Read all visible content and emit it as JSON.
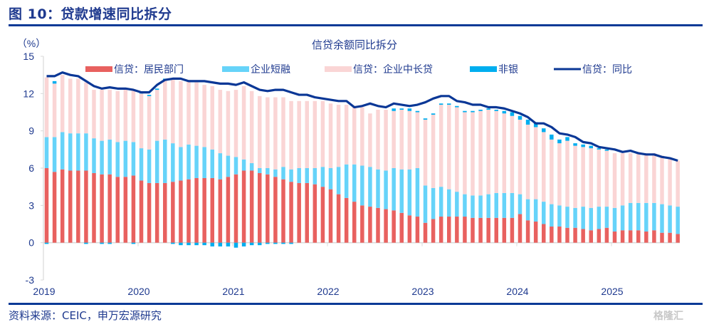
{
  "figure": {
    "title": "图 10：贷款增速同比拆分",
    "source": "资料来源：CEIC，申万宏源研究",
    "watermark": "格隆汇"
  },
  "chart_data": {
    "type": "bar",
    "stacked": true,
    "title": "信贷余额同比拆分",
    "ylabel": "（%）",
    "xlabel": "",
    "ylim": [
      -3,
      15
    ],
    "yticks": [
      15,
      12,
      9,
      6,
      3,
      0,
      -3
    ],
    "xticks": [
      "2019",
      "2020",
      "2021",
      "2022",
      "2023",
      "2024",
      "2025"
    ],
    "x_start": "2019-01",
    "x_frequency": "monthly",
    "legend_position": "top",
    "colors": {
      "household": "#e8615f",
      "corp_short": "#66d3f9",
      "corp_long": "#fad5d5",
      "nonbank": "#00aeef",
      "total": "#0a3796"
    },
    "series": [
      {
        "name": "信贷：居民部门",
        "key": "household",
        "type": "bar",
        "values": [
          6.0,
          5.7,
          5.9,
          5.8,
          5.8,
          5.8,
          5.6,
          5.5,
          5.5,
          5.3,
          5.3,
          5.4,
          5.0,
          4.8,
          4.8,
          4.8,
          4.9,
          5.0,
          5.1,
          5.2,
          5.2,
          5.2,
          5.1,
          5.3,
          5.5,
          5.8,
          5.8,
          5.6,
          5.5,
          5.3,
          5.1,
          4.9,
          4.8,
          4.8,
          4.7,
          4.5,
          4.3,
          3.9,
          3.6,
          3.3,
          3.0,
          2.9,
          2.8,
          2.7,
          2.6,
          2.4,
          2.2,
          2.1,
          1.6,
          1.9,
          2.1,
          2.1,
          2.1,
          2.1,
          2.0,
          2.0,
          2.0,
          2.0,
          2.0,
          2.0,
          2.3,
          1.8,
          1.7,
          1.5,
          1.3,
          1.3,
          1.2,
          1.2,
          1.1,
          1.0,
          1.1,
          1.2,
          0.9,
          1.0,
          1.0,
          1.0,
          0.9,
          1.0,
          0.8,
          0.8,
          0.7
        ]
      },
      {
        "name": "企业短融",
        "key": "corp_short",
        "type": "bar",
        "values": [
          2.5,
          2.8,
          3.0,
          3.0,
          3.0,
          3.0,
          2.8,
          2.7,
          2.8,
          2.8,
          2.9,
          2.7,
          2.6,
          2.7,
          3.4,
          3.5,
          3.1,
          2.7,
          2.8,
          2.6,
          2.5,
          2.3,
          2.1,
          1.7,
          1.4,
          0.9,
          0.6,
          0.4,
          0.5,
          0.6,
          1.0,
          1.0,
          1.2,
          1.2,
          1.3,
          1.6,
          1.7,
          2.2,
          2.7,
          3.0,
          3.2,
          3.2,
          3.1,
          3.1,
          3.4,
          3.5,
          3.7,
          3.9,
          3.0,
          2.5,
          2.4,
          2.2,
          2.0,
          1.8,
          1.8,
          1.8,
          1.9,
          2.0,
          2.0,
          2.0,
          1.6,
          1.7,
          1.8,
          1.8,
          1.8,
          1.7,
          1.7,
          1.6,
          1.8,
          1.8,
          1.8,
          1.7,
          1.9,
          2.0,
          2.2,
          2.2,
          2.3,
          2.2,
          2.3,
          2.2,
          2.2
        ]
      },
      {
        "name": "信贷：企业中长贷",
        "key": "corp_long",
        "type": "bar",
        "values": [
          4.8,
          4.3,
          4.6,
          4.4,
          4.4,
          4.1,
          3.9,
          4.1,
          4.0,
          4.1,
          4.1,
          4.2,
          4.4,
          4.3,
          4.1,
          4.8,
          5.1,
          5.3,
          5.2,
          5.1,
          5.0,
          5.1,
          5.1,
          5.2,
          5.4,
          5.9,
          5.8,
          5.8,
          5.7,
          5.8,
          5.6,
          5.5,
          5.4,
          5.4,
          5.4,
          5.3,
          5.2,
          5.0,
          4.8,
          4.7,
          4.7,
          4.3,
          4.8,
          4.9,
          4.6,
          4.8,
          4.7,
          4.5,
          5.3,
          5.9,
          6.6,
          6.8,
          6.8,
          6.6,
          6.7,
          6.8,
          6.8,
          6.6,
          6.4,
          6.2,
          6.0,
          6.0,
          5.8,
          5.6,
          5.2,
          5.0,
          5.3,
          5.0,
          4.8,
          4.8,
          4.6,
          4.5,
          4.4,
          4.2,
          4.0,
          4.1,
          4.0,
          4.0,
          3.9,
          3.8,
          3.7
        ]
      },
      {
        "name": "非银",
        "key": "nonbank",
        "type": "bar",
        "values": [
          -0.1,
          0.2,
          0.0,
          0.0,
          0.0,
          -0.1,
          0.0,
          -0.1,
          -0.1,
          0.0,
          0.0,
          -0.1,
          0.1,
          0.1,
          0.1,
          0.1,
          -0.1,
          -0.2,
          -0.2,
          -0.2,
          -0.2,
          -0.3,
          -0.3,
          -0.3,
          -0.4,
          -0.3,
          -0.2,
          -0.2,
          -0.1,
          -0.1,
          -0.1,
          -0.1,
          0.0,
          0.0,
          0.0,
          0.0,
          0.0,
          0.0,
          0.0,
          0.0,
          0.0,
          0.0,
          0.0,
          0.0,
          0.2,
          0.1,
          0.2,
          0.1,
          0.1,
          0.1,
          0.1,
          0.1,
          0.1,
          0.1,
          0.1,
          0.1,
          0.1,
          0.1,
          0.2,
          0.3,
          0.3,
          0.4,
          0.4,
          0.3,
          0.4,
          0.3,
          0.3,
          0.2,
          0.2,
          0.2,
          0.1,
          0.1,
          0.0,
          0.0,
          0.0,
          0.0,
          0.0,
          0.0,
          0.0,
          0.0,
          0.0
        ]
      },
      {
        "name": "信贷：同比",
        "key": "total",
        "type": "line",
        "values": [
          13.4,
          13.4,
          13.7,
          13.5,
          13.4,
          13.0,
          12.6,
          12.4,
          12.5,
          12.4,
          12.4,
          12.3,
          12.1,
          12.1,
          12.7,
          13.1,
          13.2,
          13.2,
          13.0,
          13.0,
          13.0,
          12.9,
          12.8,
          12.8,
          12.7,
          12.9,
          12.6,
          12.3,
          12.2,
          12.3,
          12.3,
          12.1,
          11.9,
          11.9,
          11.7,
          11.6,
          11.5,
          11.4,
          11.4,
          10.9,
          11.0,
          11.2,
          11.0,
          10.9,
          11.2,
          11.1,
          11.0,
          11.1,
          11.3,
          11.6,
          11.8,
          11.8,
          11.4,
          11.3,
          11.1,
          11.1,
          10.9,
          10.9,
          10.8,
          10.6,
          10.4,
          10.1,
          9.6,
          9.6,
          9.3,
          8.8,
          8.7,
          8.5,
          8.1,
          8.0,
          7.7,
          7.6,
          7.5,
          7.3,
          7.4,
          7.2,
          7.1,
          7.1,
          6.9,
          6.8,
          6.6
        ]
      }
    ]
  }
}
